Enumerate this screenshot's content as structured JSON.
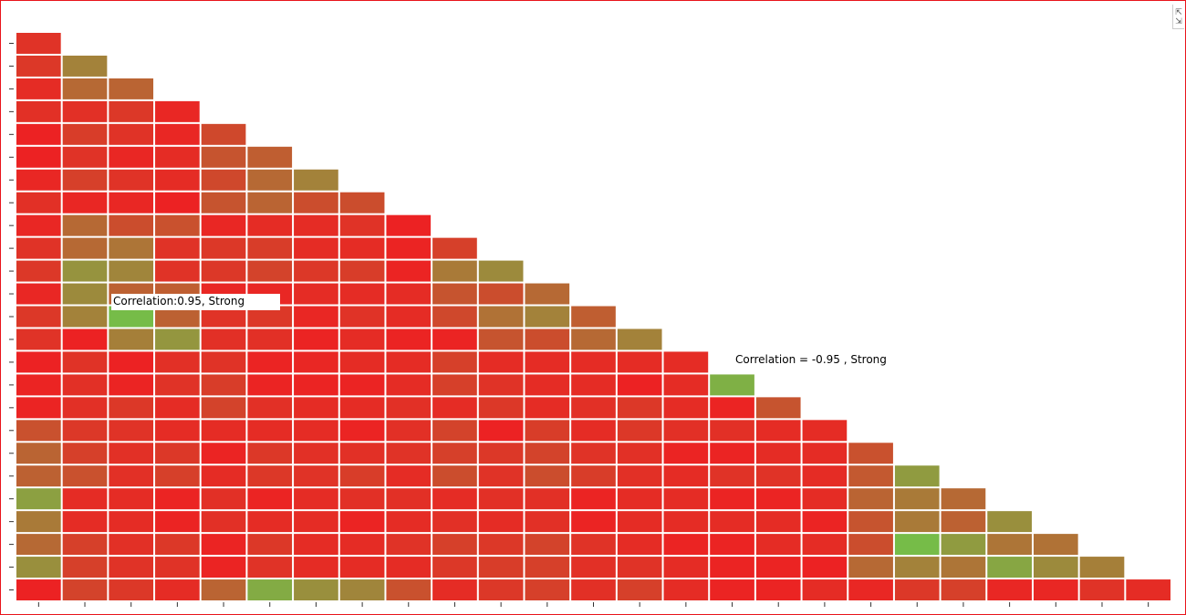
{
  "expand_icon": "collapse-arrows-icon",
  "chart_data": {
    "type": "heatmap",
    "layout": "lower-triangle",
    "size": 25,
    "value_meaning": "absolute correlation strength",
    "color_scale": {
      "low": "#ef1f22",
      "high": "#70c44a"
    },
    "grid": false,
    "values": [
      [
        0.12
      ],
      [
        0.15,
        0.6
      ],
      [
        0.08,
        0.45,
        0.42
      ],
      [
        0.1,
        0.1,
        0.15,
        0.05
      ],
      [
        0.02,
        0.18,
        0.12,
        0.05,
        0.25
      ],
      [
        0.02,
        0.12,
        0.05,
        0.08,
        0.32,
        0.38
      ],
      [
        0.05,
        0.2,
        0.12,
        0.08,
        0.25,
        0.45,
        0.6
      ],
      [
        0.1,
        0.05,
        0.05,
        0.02,
        0.32,
        0.42,
        0.28,
        0.28
      ],
      [
        0.05,
        0.45,
        0.28,
        0.3,
        0.05,
        0.08,
        0.08,
        0.12,
        0.02
      ],
      [
        0.12,
        0.45,
        0.52,
        0.12,
        0.15,
        0.18,
        0.08,
        0.08,
        0.03,
        0.2
      ],
      [
        0.15,
        0.7,
        0.62,
        0.12,
        0.15,
        0.22,
        0.15,
        0.18,
        0.03,
        0.55,
        0.65
      ],
      [
        0.05,
        0.65,
        0.4,
        0.38,
        0.05,
        0.05,
        0.08,
        0.08,
        0.08,
        0.32,
        0.28,
        0.45
      ],
      [
        0.15,
        0.6,
        0.95,
        0.4,
        0.12,
        0.15,
        0.05,
        0.12,
        0.08,
        0.25,
        0.5,
        0.6,
        0.38
      ],
      [
        0.12,
        0.02,
        0.58,
        0.72,
        0.1,
        0.1,
        0.03,
        0.08,
        0.03,
        0.03,
        0.32,
        0.28,
        0.45,
        0.6
      ],
      [
        0.02,
        0.12,
        0.02,
        0.1,
        0.12,
        0.03,
        0.05,
        0.08,
        0.08,
        0.2,
        0.08,
        0.08,
        0.08,
        0.08,
        0.08
      ],
      [
        0.03,
        0.1,
        0.03,
        0.12,
        0.18,
        0.03,
        0.03,
        0.03,
        0.08,
        0.2,
        0.12,
        0.08,
        0.08,
        0.02,
        0.08,
        0.88
      ],
      [
        0.03,
        0.1,
        0.15,
        0.08,
        0.22,
        0.1,
        0.08,
        0.08,
        0.1,
        0.08,
        0.15,
        0.08,
        0.1,
        0.15,
        0.08,
        0.03,
        0.32
      ],
      [
        0.3,
        0.15,
        0.12,
        0.08,
        0.08,
        0.08,
        0.08,
        0.03,
        0.1,
        0.22,
        0.02,
        0.18,
        0.08,
        0.15,
        0.1,
        0.1,
        0.08,
        0.08
      ],
      [
        0.42,
        0.2,
        0.1,
        0.15,
        0.03,
        0.15,
        0.1,
        0.1,
        0.12,
        0.2,
        0.15,
        0.22,
        0.12,
        0.1,
        0.03,
        0.03,
        0.08,
        0.08,
        0.3
      ],
      [
        0.4,
        0.3,
        0.1,
        0.2,
        0.08,
        0.15,
        0.12,
        0.18,
        0.08,
        0.28,
        0.12,
        0.28,
        0.18,
        0.1,
        0.08,
        0.12,
        0.12,
        0.08,
        0.35,
        0.75
      ],
      [
        0.78,
        0.08,
        0.08,
        0.03,
        0.1,
        0.03,
        0.08,
        0.1,
        0.1,
        0.08,
        0.1,
        0.1,
        0.03,
        0.08,
        0.08,
        0.03,
        0.03,
        0.08,
        0.42,
        0.55,
        0.45
      ],
      [
        0.55,
        0.08,
        0.08,
        0.03,
        0.1,
        0.08,
        0.08,
        0.03,
        0.08,
        0.1,
        0.08,
        0.1,
        0.03,
        0.08,
        0.08,
        0.08,
        0.08,
        0.03,
        0.32,
        0.55,
        0.4,
        0.68
      ],
      [
        0.45,
        0.2,
        0.1,
        0.15,
        0.03,
        0.15,
        0.08,
        0.08,
        0.12,
        0.2,
        0.15,
        0.22,
        0.12,
        0.08,
        0.03,
        0.03,
        0.08,
        0.08,
        0.28,
        0.95,
        0.75,
        0.52,
        0.5
      ],
      [
        0.68,
        0.2,
        0.12,
        0.12,
        0.03,
        0.12,
        0.08,
        0.08,
        0.08,
        0.15,
        0.18,
        0.2,
        0.1,
        0.12,
        0.08,
        0.03,
        0.03,
        0.02,
        0.45,
        0.6,
        0.52,
        0.82,
        0.65,
        0.58
      ],
      [
        0.02,
        0.22,
        0.15,
        0.08,
        0.42,
        0.85,
        0.68,
        0.62,
        0.3,
        0.08,
        0.15,
        0.2,
        0.1,
        0.2,
        0.08,
        0.03,
        0.03,
        0.08,
        0.05,
        0.15,
        0.2,
        0.05,
        0.05,
        0.12,
        0.08
      ]
    ],
    "tooltip": "Correlation:0.95, Strong",
    "annotation": "Correlation = -0.95 , Strong"
  }
}
